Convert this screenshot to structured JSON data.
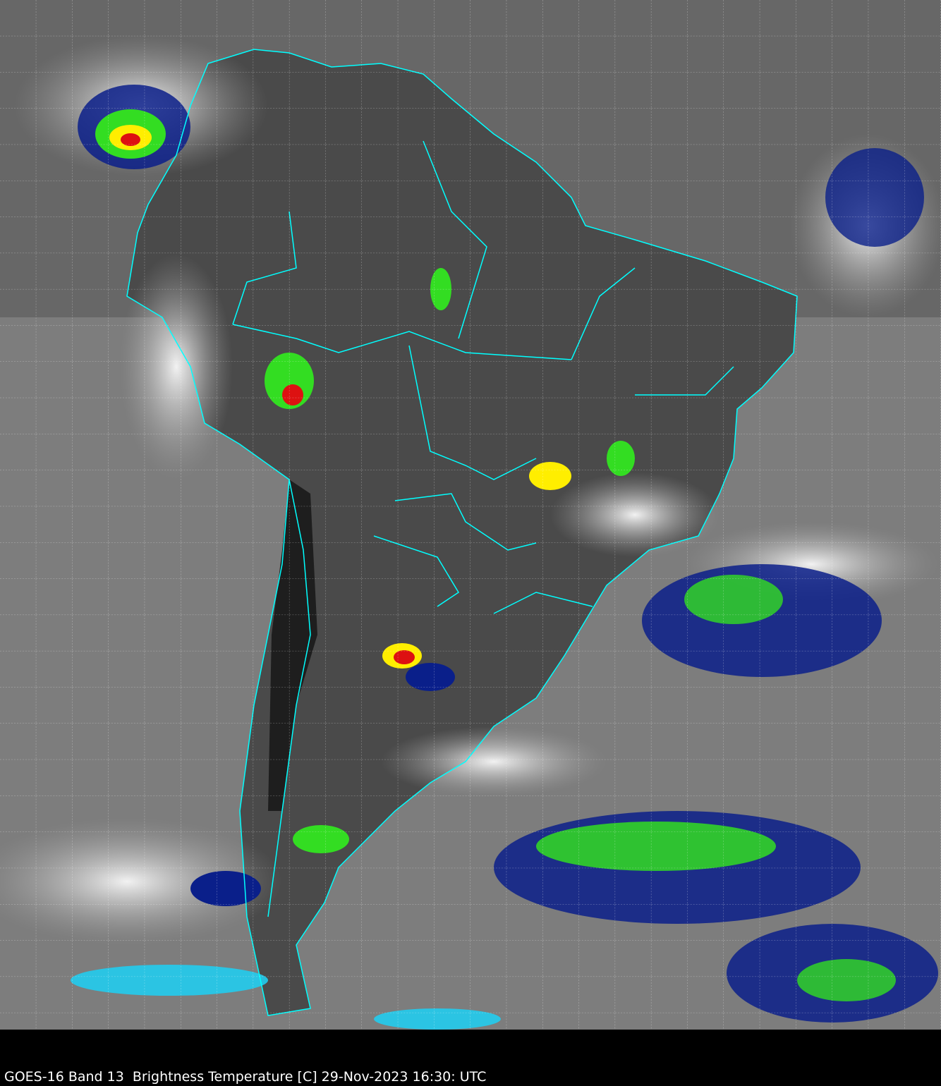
{
  "caption": "GOES-16 Band 13  Brightness Temperature [C] 29-Nov-2023 16:30: UTC",
  "colors": {
    "background_ocean": "#7a7a7a",
    "land_dark": "#3a3a3a",
    "border": "#00ffff",
    "grid": "#ffffff",
    "cold_cloud_blue": "#0a1f8a",
    "cold_cloud_green": "#33dd22",
    "very_cold_yellow": "#ffee00",
    "very_cold_red": "#dd1111",
    "cirrus_cyan": "#22ccee"
  }
}
